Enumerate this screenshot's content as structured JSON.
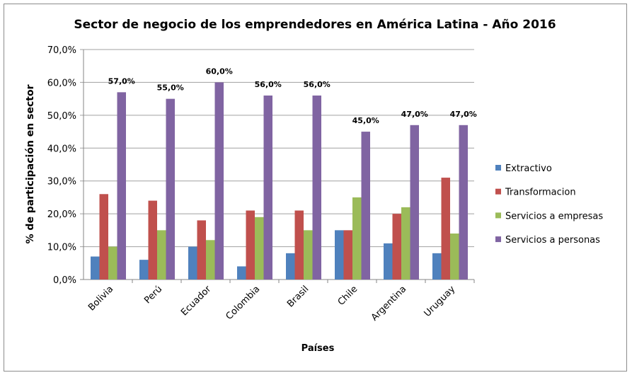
{
  "chart_data": {
    "type": "bar",
    "title": "Sector de negocio de los emprendedores en América Latina - Año 2016",
    "xlabel": "Países",
    "ylabel": "% de participación en sector",
    "ylim": [
      0,
      70
    ],
    "yticks": [
      "0,0%",
      "10,0%",
      "20,0%",
      "30,0%",
      "40,0%",
      "50,0%",
      "60,0%",
      "70,0%"
    ],
    "grid": true,
    "legend_position": "right",
    "categories": [
      "Bolivia",
      "Perú",
      "Ecuador",
      "Colombia",
      "Brasil",
      "Chile",
      "Argentina",
      "Uruguay"
    ],
    "series": [
      {
        "name": "Extractivo",
        "color": "#4f81bd",
        "values": [
          7,
          6,
          10,
          4,
          8,
          15,
          11,
          8
        ]
      },
      {
        "name": "Transformacion",
        "color": "#c0504d",
        "values": [
          26,
          24,
          18,
          21,
          21,
          15,
          20,
          31
        ]
      },
      {
        "name": "Servicios a empresas",
        "color": "#9bbb59",
        "values": [
          10,
          15,
          12,
          19,
          15,
          25,
          22,
          14
        ]
      },
      {
        "name": "Servicios a personas",
        "color": "#8064a2",
        "values": [
          57,
          55,
          60,
          56,
          56,
          45,
          47,
          47
        ]
      }
    ],
    "data_labels": [
      "57,0%",
      "55,0%",
      "60,0%",
      "56,0%",
      "56,0%",
      "45,0%",
      "47,0%",
      "47,0%"
    ]
  }
}
